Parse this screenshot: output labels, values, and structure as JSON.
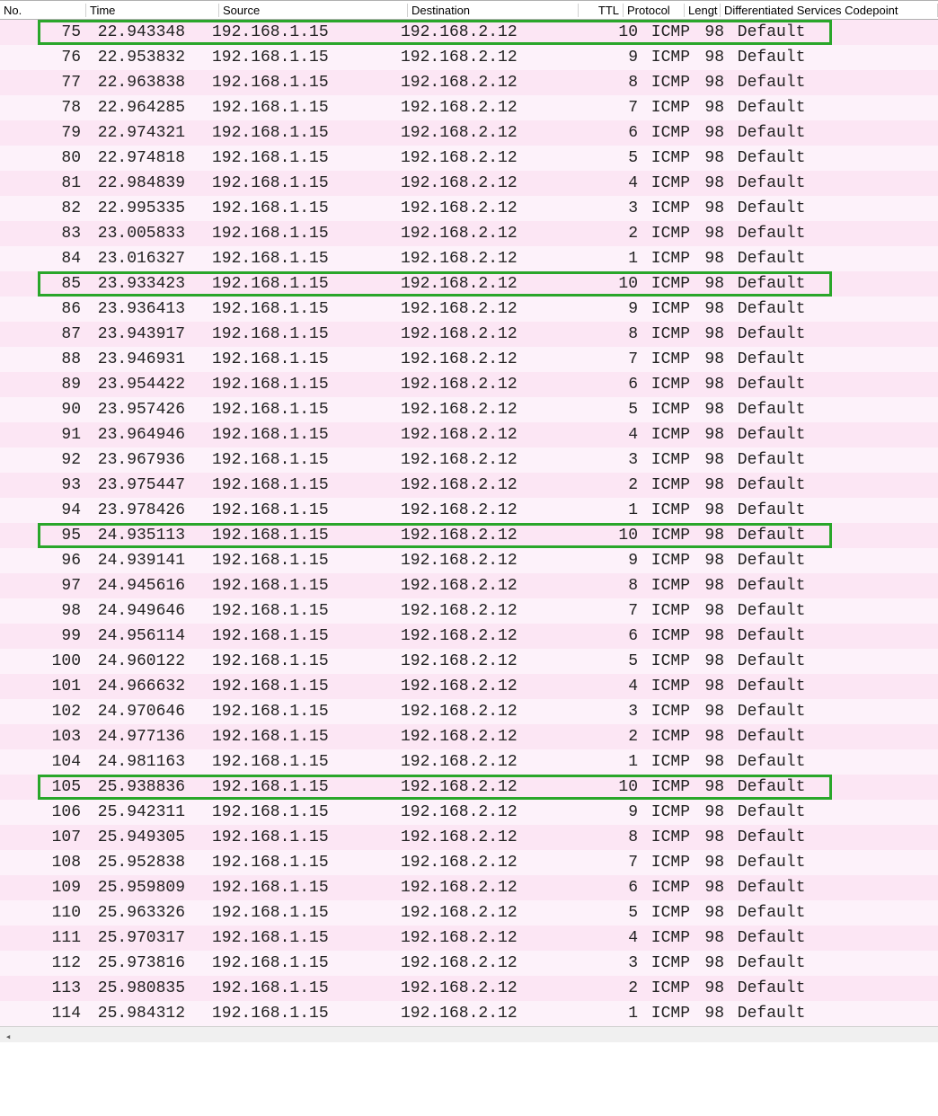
{
  "colors": {
    "row_even_bg": "#fce6f4",
    "row_odd_bg": "#fdf2fa",
    "highlight_border": "#2aa62a",
    "header_border": "#b0b0b0",
    "text": "#222222"
  },
  "columns": [
    {
      "key": "no",
      "label": "No."
    },
    {
      "key": "time",
      "label": "Time"
    },
    {
      "key": "src",
      "label": "Source"
    },
    {
      "key": "dst",
      "label": "Destination"
    },
    {
      "key": "ttl",
      "label": "TTL"
    },
    {
      "key": "proto",
      "label": "Protocol"
    },
    {
      "key": "len",
      "label": "Lengt"
    },
    {
      "key": "dscp",
      "label": "Differentiated Services Codepoint"
    }
  ],
  "highlighted_rows": [
    75,
    85,
    95,
    105
  ],
  "rows": [
    {
      "no": 75,
      "time": "22.943348",
      "src": "192.168.1.15",
      "dst": "192.168.2.12",
      "ttl": 10,
      "proto": "ICMP",
      "len": 98,
      "dscp": "Default"
    },
    {
      "no": 76,
      "time": "22.953832",
      "src": "192.168.1.15",
      "dst": "192.168.2.12",
      "ttl": 9,
      "proto": "ICMP",
      "len": 98,
      "dscp": "Default"
    },
    {
      "no": 77,
      "time": "22.963838",
      "src": "192.168.1.15",
      "dst": "192.168.2.12",
      "ttl": 8,
      "proto": "ICMP",
      "len": 98,
      "dscp": "Default"
    },
    {
      "no": 78,
      "time": "22.964285",
      "src": "192.168.1.15",
      "dst": "192.168.2.12",
      "ttl": 7,
      "proto": "ICMP",
      "len": 98,
      "dscp": "Default"
    },
    {
      "no": 79,
      "time": "22.974321",
      "src": "192.168.1.15",
      "dst": "192.168.2.12",
      "ttl": 6,
      "proto": "ICMP",
      "len": 98,
      "dscp": "Default"
    },
    {
      "no": 80,
      "time": "22.974818",
      "src": "192.168.1.15",
      "dst": "192.168.2.12",
      "ttl": 5,
      "proto": "ICMP",
      "len": 98,
      "dscp": "Default"
    },
    {
      "no": 81,
      "time": "22.984839",
      "src": "192.168.1.15",
      "dst": "192.168.2.12",
      "ttl": 4,
      "proto": "ICMP",
      "len": 98,
      "dscp": "Default"
    },
    {
      "no": 82,
      "time": "22.995335",
      "src": "192.168.1.15",
      "dst": "192.168.2.12",
      "ttl": 3,
      "proto": "ICMP",
      "len": 98,
      "dscp": "Default"
    },
    {
      "no": 83,
      "time": "23.005833",
      "src": "192.168.1.15",
      "dst": "192.168.2.12",
      "ttl": 2,
      "proto": "ICMP",
      "len": 98,
      "dscp": "Default"
    },
    {
      "no": 84,
      "time": "23.016327",
      "src": "192.168.1.15",
      "dst": "192.168.2.12",
      "ttl": 1,
      "proto": "ICMP",
      "len": 98,
      "dscp": "Default"
    },
    {
      "no": 85,
      "time": "23.933423",
      "src": "192.168.1.15",
      "dst": "192.168.2.12",
      "ttl": 10,
      "proto": "ICMP",
      "len": 98,
      "dscp": "Default"
    },
    {
      "no": 86,
      "time": "23.936413",
      "src": "192.168.1.15",
      "dst": "192.168.2.12",
      "ttl": 9,
      "proto": "ICMP",
      "len": 98,
      "dscp": "Default"
    },
    {
      "no": 87,
      "time": "23.943917",
      "src": "192.168.1.15",
      "dst": "192.168.2.12",
      "ttl": 8,
      "proto": "ICMP",
      "len": 98,
      "dscp": "Default"
    },
    {
      "no": 88,
      "time": "23.946931",
      "src": "192.168.1.15",
      "dst": "192.168.2.12",
      "ttl": 7,
      "proto": "ICMP",
      "len": 98,
      "dscp": "Default"
    },
    {
      "no": 89,
      "time": "23.954422",
      "src": "192.168.1.15",
      "dst": "192.168.2.12",
      "ttl": 6,
      "proto": "ICMP",
      "len": 98,
      "dscp": "Default"
    },
    {
      "no": 90,
      "time": "23.957426",
      "src": "192.168.1.15",
      "dst": "192.168.2.12",
      "ttl": 5,
      "proto": "ICMP",
      "len": 98,
      "dscp": "Default"
    },
    {
      "no": 91,
      "time": "23.964946",
      "src": "192.168.1.15",
      "dst": "192.168.2.12",
      "ttl": 4,
      "proto": "ICMP",
      "len": 98,
      "dscp": "Default"
    },
    {
      "no": 92,
      "time": "23.967936",
      "src": "192.168.1.15",
      "dst": "192.168.2.12",
      "ttl": 3,
      "proto": "ICMP",
      "len": 98,
      "dscp": "Default"
    },
    {
      "no": 93,
      "time": "23.975447",
      "src": "192.168.1.15",
      "dst": "192.168.2.12",
      "ttl": 2,
      "proto": "ICMP",
      "len": 98,
      "dscp": "Default"
    },
    {
      "no": 94,
      "time": "23.978426",
      "src": "192.168.1.15",
      "dst": "192.168.2.12",
      "ttl": 1,
      "proto": "ICMP",
      "len": 98,
      "dscp": "Default"
    },
    {
      "no": 95,
      "time": "24.935113",
      "src": "192.168.1.15",
      "dst": "192.168.2.12",
      "ttl": 10,
      "proto": "ICMP",
      "len": 98,
      "dscp": "Default"
    },
    {
      "no": 96,
      "time": "24.939141",
      "src": "192.168.1.15",
      "dst": "192.168.2.12",
      "ttl": 9,
      "proto": "ICMP",
      "len": 98,
      "dscp": "Default"
    },
    {
      "no": 97,
      "time": "24.945616",
      "src": "192.168.1.15",
      "dst": "192.168.2.12",
      "ttl": 8,
      "proto": "ICMP",
      "len": 98,
      "dscp": "Default"
    },
    {
      "no": 98,
      "time": "24.949646",
      "src": "192.168.1.15",
      "dst": "192.168.2.12",
      "ttl": 7,
      "proto": "ICMP",
      "len": 98,
      "dscp": "Default"
    },
    {
      "no": 99,
      "time": "24.956114",
      "src": "192.168.1.15",
      "dst": "192.168.2.12",
      "ttl": 6,
      "proto": "ICMP",
      "len": 98,
      "dscp": "Default"
    },
    {
      "no": 100,
      "time": "24.960122",
      "src": "192.168.1.15",
      "dst": "192.168.2.12",
      "ttl": 5,
      "proto": "ICMP",
      "len": 98,
      "dscp": "Default"
    },
    {
      "no": 101,
      "time": "24.966632",
      "src": "192.168.1.15",
      "dst": "192.168.2.12",
      "ttl": 4,
      "proto": "ICMP",
      "len": 98,
      "dscp": "Default"
    },
    {
      "no": 102,
      "time": "24.970646",
      "src": "192.168.1.15",
      "dst": "192.168.2.12",
      "ttl": 3,
      "proto": "ICMP",
      "len": 98,
      "dscp": "Default"
    },
    {
      "no": 103,
      "time": "24.977136",
      "src": "192.168.1.15",
      "dst": "192.168.2.12",
      "ttl": 2,
      "proto": "ICMP",
      "len": 98,
      "dscp": "Default"
    },
    {
      "no": 104,
      "time": "24.981163",
      "src": "192.168.1.15",
      "dst": "192.168.2.12",
      "ttl": 1,
      "proto": "ICMP",
      "len": 98,
      "dscp": "Default"
    },
    {
      "no": 105,
      "time": "25.938836",
      "src": "192.168.1.15",
      "dst": "192.168.2.12",
      "ttl": 10,
      "proto": "ICMP",
      "len": 98,
      "dscp": "Default"
    },
    {
      "no": 106,
      "time": "25.942311",
      "src": "192.168.1.15",
      "dst": "192.168.2.12",
      "ttl": 9,
      "proto": "ICMP",
      "len": 98,
      "dscp": "Default"
    },
    {
      "no": 107,
      "time": "25.949305",
      "src": "192.168.1.15",
      "dst": "192.168.2.12",
      "ttl": 8,
      "proto": "ICMP",
      "len": 98,
      "dscp": "Default"
    },
    {
      "no": 108,
      "time": "25.952838",
      "src": "192.168.1.15",
      "dst": "192.168.2.12",
      "ttl": 7,
      "proto": "ICMP",
      "len": 98,
      "dscp": "Default"
    },
    {
      "no": 109,
      "time": "25.959809",
      "src": "192.168.1.15",
      "dst": "192.168.2.12",
      "ttl": 6,
      "proto": "ICMP",
      "len": 98,
      "dscp": "Default"
    },
    {
      "no": 110,
      "time": "25.963326",
      "src": "192.168.1.15",
      "dst": "192.168.2.12",
      "ttl": 5,
      "proto": "ICMP",
      "len": 98,
      "dscp": "Default"
    },
    {
      "no": 111,
      "time": "25.970317",
      "src": "192.168.1.15",
      "dst": "192.168.2.12",
      "ttl": 4,
      "proto": "ICMP",
      "len": 98,
      "dscp": "Default"
    },
    {
      "no": 112,
      "time": "25.973816",
      "src": "192.168.1.15",
      "dst": "192.168.2.12",
      "ttl": 3,
      "proto": "ICMP",
      "len": 98,
      "dscp": "Default"
    },
    {
      "no": 113,
      "time": "25.980835",
      "src": "192.168.1.15",
      "dst": "192.168.2.12",
      "ttl": 2,
      "proto": "ICMP",
      "len": 98,
      "dscp": "Default"
    },
    {
      "no": 114,
      "time": "25.984312",
      "src": "192.168.1.15",
      "dst": "192.168.2.12",
      "ttl": 1,
      "proto": "ICMP",
      "len": 98,
      "dscp": "Default"
    }
  ]
}
